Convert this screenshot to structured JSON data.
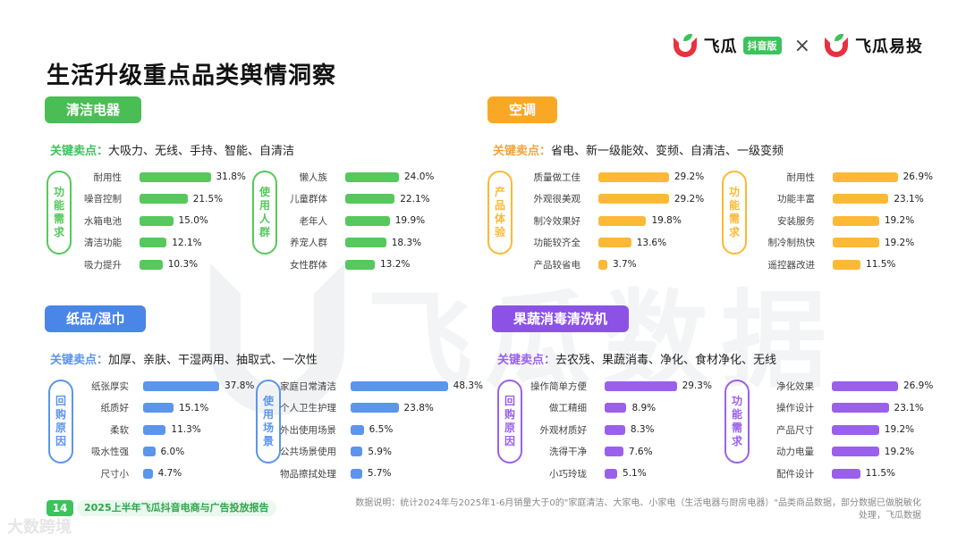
{
  "brand": {
    "left_name": "飞瓜",
    "left_badge": "抖音版",
    "separator": "×",
    "right_name": "飞瓜易投",
    "logo_red": "#e8313f",
    "logo_green": "#3cc35c"
  },
  "watermark": "飞瓜数据",
  "page_title": "生活升级重点品类舆情洞察",
  "key_label": "关键卖点：",
  "chart_data": [
    {
      "type": "bar",
      "title": "清洁电器",
      "color": "#56c85d",
      "tag_color": "#4bbd55",
      "key_points": "大吸力、无线、手持、智能、自清洁",
      "groups": [
        {
          "label": "功能需求",
          "categories": [
            "耐用性",
            "噪音控制",
            "水箱电池",
            "清洁功能",
            "吸力提升"
          ],
          "values": [
            31.8,
            21.5,
            15.0,
            12.1,
            10.3
          ],
          "value_labels": [
            "31.8%",
            "21.5%",
            "15.0%",
            "12.1%",
            "10.3%"
          ]
        },
        {
          "label": "使用人群",
          "categories": [
            "懒人族",
            "儿童群体",
            "老年人",
            "养宠人群",
            "女性群体"
          ],
          "values": [
            24.0,
            22.1,
            19.9,
            18.3,
            13.2
          ],
          "value_labels": [
            "24.0%",
            "22.1%",
            "19.9%",
            "18.3%",
            "13.2%"
          ]
        }
      ]
    },
    {
      "type": "bar",
      "title": "空调",
      "color": "#fbb936",
      "tag_color": "#f9a825",
      "key_points": "省电、新一级能效、变频、自清洁、一级变频",
      "groups": [
        {
          "label": "产品体验",
          "categories": [
            "质量做工佳",
            "外观很美观",
            "制冷效果好",
            "功能较齐全",
            "产品较省电"
          ],
          "values": [
            29.2,
            29.2,
            19.8,
            13.6,
            3.7
          ],
          "value_labels": [
            "29.2%",
            "29.2%",
            "19.8%",
            "13.6%",
            "3.7%"
          ]
        },
        {
          "label": "功能需求",
          "categories": [
            "耐用性",
            "功能丰富",
            "安装服务",
            "制冷制热快",
            "遥控器改进"
          ],
          "values": [
            26.9,
            23.1,
            19.2,
            19.2,
            11.5
          ],
          "value_labels": [
            "26.9%",
            "23.1%",
            "19.2%",
            "19.2%",
            "11.5%"
          ]
        }
      ]
    },
    {
      "type": "bar",
      "title": "纸品/湿巾",
      "color": "#5b95ec",
      "tag_color": "#4a86e8",
      "key_points": "加厚、亲肤、干湿两用、抽取式、一次性",
      "groups": [
        {
          "label": "回购原因",
          "categories": [
            "纸张厚实",
            "纸质好",
            "柔软",
            "吸水性强",
            "尺寸小"
          ],
          "values": [
            37.8,
            15.1,
            11.3,
            6.0,
            4.7
          ],
          "value_labels": [
            "37.8%",
            "15.1%",
            "11.3%",
            "6.0%",
            "4.7%"
          ]
        },
        {
          "label": "使用场景",
          "categories": [
            "家庭日常清洁",
            "个人卫生护理",
            "外出使用场景",
            "公共场景使用",
            "物品擦拭处理"
          ],
          "values": [
            48.3,
            23.8,
            6.5,
            5.9,
            5.7
          ],
          "value_labels": [
            "48.3%",
            "23.8%",
            "6.5%",
            "5.9%",
            "5.7%"
          ]
        }
      ]
    },
    {
      "type": "bar",
      "title": "果蔬消毒清洗机",
      "color": "#9a60ec",
      "tag_color": "#8c52e6",
      "key_points": "去农残、果蔬消毒、净化、食材净化、无线",
      "groups": [
        {
          "label": "回购原因",
          "categories": [
            "操作简单方便",
            "做工精细",
            "外观材质好",
            "洗得干净",
            "小巧玲珑"
          ],
          "values": [
            29.3,
            8.9,
            8.3,
            7.6,
            5.1
          ],
          "value_labels": [
            "29.3%",
            "8.9%",
            "8.3%",
            "7.6%",
            "5.1%"
          ]
        },
        {
          "label": "功能需求",
          "categories": [
            "净化效果",
            "操作设计",
            "产品尺寸",
            "动力电量",
            "配件设计"
          ],
          "values": [
            26.9,
            23.1,
            19.2,
            19.2,
            11.5
          ],
          "value_labels": [
            "26.9%",
            "23.1%",
            "19.2%",
            "19.2%",
            "11.5%"
          ]
        }
      ]
    }
  ],
  "footer": {
    "page_number": "14",
    "report_title": "2025上半年飞瓜抖音电商与广告投放报告",
    "note": "数据说明：统计2024年与2025年1-6月销量大于0的\"家庭清洁、大家电、小家电（生活电器与厨房电器）\"品类商品数据，部分数据已做脱敏化处理，飞瓜数据"
  },
  "corner_mark": "大数跨境",
  "key_label_color": "#3cc35c",
  "key_label_color_ac": "#f2a43a"
}
